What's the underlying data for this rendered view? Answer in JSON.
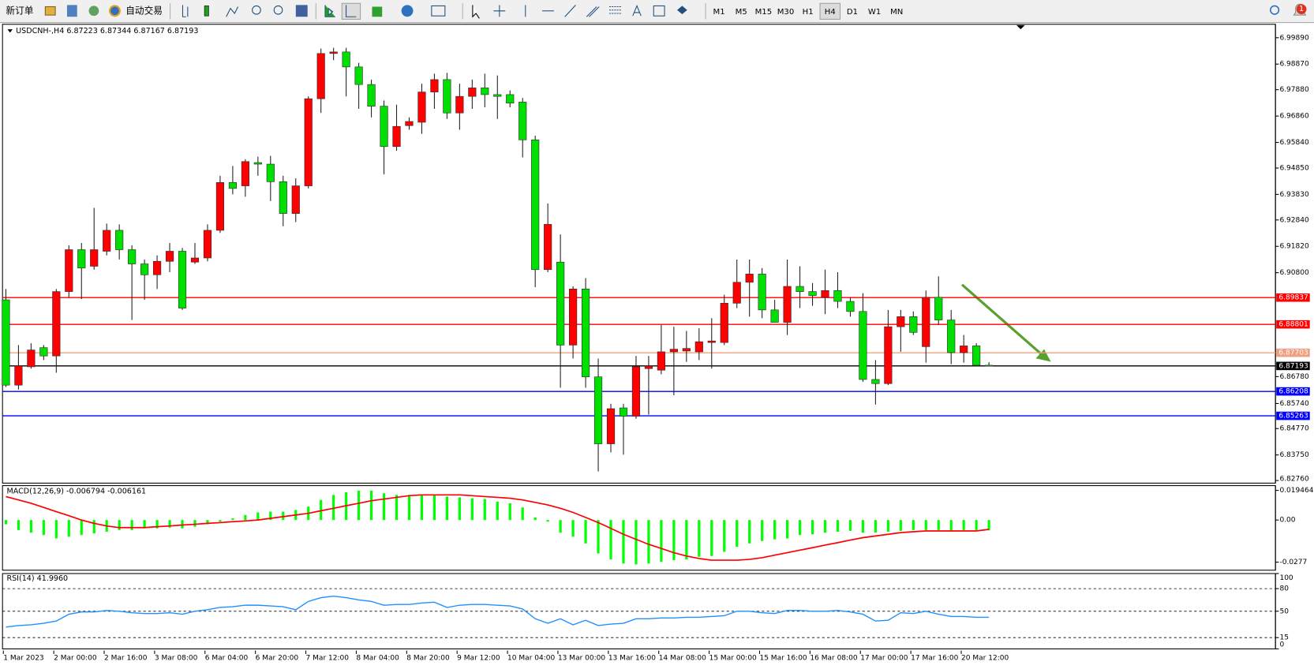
{
  "toolbar": {
    "new_order": "新订单",
    "auto_trading": "自动交易",
    "timeframes": [
      "M1",
      "M5",
      "M15",
      "M30",
      "H1",
      "H4",
      "D1",
      "W1",
      "MN"
    ],
    "active_timeframe": 5,
    "notifications": 1
  },
  "chart_data": [
    {
      "type": "candlestick",
      "title": "USDCNH-,H4  6.87223 6.87344 6.87167 6.87193",
      "categories": [
        "1 Mar 2023",
        null,
        null,
        null,
        "2 Mar 00:00",
        null,
        null,
        null,
        "2 Mar 16:00",
        null,
        null,
        null,
        "3 Mar 08:00",
        null,
        null,
        null,
        "6 Mar 04:00",
        null,
        null,
        null,
        "6 Mar 20:00",
        null,
        null,
        null,
        "7 Mar 12:00",
        null,
        null,
        null,
        "8 Mar 04:00",
        null,
        null,
        null,
        "8 Mar 20:00",
        null,
        null,
        null,
        "9 Mar 12:00",
        null,
        null,
        null,
        "10 Mar 04:00",
        null,
        null,
        null,
        "13 Mar 00:00",
        null,
        null,
        null,
        "13 Mar 16:00",
        null,
        null,
        null,
        "14 Mar 08:00",
        null,
        null,
        null,
        "15 Mar 00:00",
        null,
        null,
        null,
        "15 Mar 16:00",
        null,
        null,
        null,
        "16 Mar 08:00",
        null,
        null,
        null,
        "17 Mar 00:00",
        null,
        null,
        null,
        "17 Mar 16:00",
        null,
        null,
        null,
        "20 Mar 12:00",
        null,
        null
      ],
      "open": [
        6.8975,
        6.8645,
        6.8716,
        6.879,
        6.8758,
        6.9007,
        6.9169,
        6.9105,
        6.9163,
        6.9244,
        6.9169,
        6.9114,
        6.9072,
        6.9124,
        6.9163,
        6.9121,
        6.9137,
        6.9244,
        6.9429,
        6.9416,
        6.9506,
        6.95,
        6.9432,
        6.9309,
        6.9416,
        6.9753,
        6.9928,
        6.9934,
        6.9876,
        6.9808,
        6.9724,
        6.9568,
        6.9649,
        6.9662,
        6.9779,
        6.9827,
        6.9698,
        6.9762,
        6.9795,
        6.9769,
        6.9769,
        6.974,
        6.9594,
        6.9092,
        6.9121,
        6.88,
        6.9017,
        6.8677,
        6.8418,
        6.8557,
        6.8525,
        6.8709,
        6.8703,
        6.8774,
        6.8777,
        6.8774,
        6.881,
        6.881,
        6.8962,
        6.9043,
        6.9075,
        6.8936,
        6.8888,
        6.9027,
        6.9007,
        6.8985,
        6.9011,
        6.8969,
        6.893,
        6.8667,
        6.8651,
        6.8871,
        6.891,
        6.8794,
        6.8985,
        6.8897,
        6.8771,
        6.8797,
        6.8722
      ],
      "high": [
        6.9017,
        6.88,
        6.8807,
        6.88,
        6.9017,
        6.9186,
        6.9195,
        6.9331,
        6.927,
        6.9267,
        6.9186,
        6.9131,
        6.9147,
        6.9195,
        6.9176,
        6.9195,
        6.9267,
        6.9455,
        6.9493,
        6.9519,
        6.9529,
        6.9532,
        6.9455,
        6.9445,
        6.9762,
        6.9947,
        6.995,
        6.995,
        6.9892,
        6.9827,
        6.9746,
        6.973,
        6.9681,
        6.9811,
        6.985,
        6.9853,
        6.9811,
        6.9827,
        6.985,
        6.9843,
        6.9785,
        6.9756,
        6.961,
        6.9348,
        6.9228,
        6.9027,
        6.9059,
        6.8748,
        6.8573,
        6.8573,
        6.8758,
        6.8758,
        6.8878,
        6.8871,
        6.8855,
        6.8865,
        6.8904,
        6.8995,
        6.9131,
        6.9131,
        6.9098,
        6.8975,
        6.9131,
        6.9105,
        6.904,
        6.9092,
        6.9082,
        6.8985,
        6.9001,
        6.8742,
        6.8936,
        6.8936,
        6.893,
        6.9011,
        6.9066,
        6.8936,
        6.8839,
        6.8807,
        6.8734
      ],
      "low": [
        6.8638,
        6.8628,
        6.8709,
        6.8742,
        6.8693,
        6.8985,
        6.8978,
        6.9092,
        6.9147,
        6.9131,
        6.8897,
        6.8975,
        6.9017,
        6.9082,
        6.8936,
        6.9114,
        6.9124,
        6.9234,
        6.9383,
        6.9374,
        6.9455,
        6.9357,
        6.926,
        6.9276,
        6.9406,
        6.9698,
        6.9902,
        6.9762,
        6.9714,
        6.9681,
        6.9461,
        6.9552,
        6.9633,
        6.9617,
        6.9714,
        6.9675,
        6.9633,
        6.9714,
        6.972,
        6.9675,
        6.972,
        6.9526,
        6.9024,
        6.9082,
        6.8635,
        6.8748,
        6.8635,
        6.8311,
        6.8385,
        6.8376,
        6.8515,
        6.8531,
        6.8687,
        6.8606,
        6.8735,
        6.8742,
        6.8709,
        6.88,
        6.8943,
        6.891,
        6.8904,
        6.8888,
        6.8839,
        6.8943,
        6.8952,
        6.892,
        6.8943,
        6.891,
        6.8658,
        6.857,
        6.8645,
        6.8774,
        6.8839,
        6.8732,
        6.8878,
        6.8726,
        6.8732,
        6.8719,
        6.8717
      ],
      "close": [
        6.8645,
        6.8719,
        6.8781,
        6.8758,
        6.9007,
        6.9169,
        6.9098,
        6.9169,
        6.9244,
        6.9169,
        6.9114,
        6.9072,
        6.9124,
        6.9163,
        6.8943,
        6.9137,
        6.9244,
        6.9429,
        6.9406,
        6.951,
        6.95,
        6.9432,
        6.9309,
        6.9416,
        6.9753,
        6.9928,
        6.9934,
        6.9876,
        6.9808,
        6.9724,
        6.9568,
        6.9646,
        6.9665,
        6.9779,
        6.9827,
        6.9698,
        6.9762,
        6.9795,
        6.9769,
        6.9762,
        6.9736,
        6.9594,
        6.9092,
        6.9267,
        6.88,
        6.9017,
        6.8677,
        6.8418,
        6.8554,
        6.8525,
        6.8716,
        6.8719,
        6.8774,
        6.8784,
        6.8787,
        6.8813,
        6.8816,
        6.8962,
        6.9043,
        6.9075,
        6.8936,
        6.8888,
        6.9027,
        6.9007,
        6.8991,
        6.9011,
        6.8969,
        6.893,
        6.8667,
        6.8651,
        6.8871,
        6.891,
        6.8849,
        6.8985,
        6.8897,
        6.8771,
        6.8797,
        6.8722,
        6.8719
      ],
      "up_color": "#ff0000",
      "down_color": "#00e000",
      "ylim": [
        6.8266,
        7.0041
      ],
      "yticks": [
        {
          "value": 6.9989,
          "label": "6.99890"
        },
        {
          "value": 6.9887,
          "label": "6.98870"
        },
        {
          "value": 6.9788,
          "label": "6.97880"
        },
        {
          "value": 6.9686,
          "label": "6.96860"
        },
        {
          "value": 6.9584,
          "label": "6.95840"
        },
        {
          "value": 6.9485,
          "label": "6.94850"
        },
        {
          "value": 6.9383,
          "label": "6.93830"
        },
        {
          "value": 6.9284,
          "label": "6.92840"
        },
        {
          "value": 6.9182,
          "label": "6.91820"
        },
        {
          "value": 6.908,
          "label": "6.90800"
        },
        {
          "value": 6.8678,
          "label": "6.86780"
        },
        {
          "value": 6.8574,
          "label": "6.85740"
        },
        {
          "value": 6.8477,
          "label": "6.84770"
        },
        {
          "value": 6.8375,
          "label": "6.83750"
        },
        {
          "value": 6.8276,
          "label": "6.82760"
        }
      ],
      "levels": [
        {
          "value": 6.89837,
          "color": "#ff0000"
        },
        {
          "value": 6.88801,
          "color": "#ff0000"
        },
        {
          "value": 6.87703,
          "color": "#f0a080"
        },
        {
          "value": 6.87193,
          "color": "#000000"
        },
        {
          "value": 6.86208,
          "color": "#0000ff"
        },
        {
          "value": 6.85263,
          "color": "#0000ff"
        }
      ]
    },
    {
      "type": "macd",
      "title": "MACD(12,26,9) -0.006794 -0.006161",
      "histogram": {
        "color": "#00ff00",
        "values": [
          -0.0028,
          -0.0066,
          -0.0083,
          -0.0099,
          -0.0121,
          -0.011,
          -0.0099,
          -0.0088,
          -0.0077,
          -0.0066,
          -0.0066,
          -0.0055,
          -0.0055,
          -0.005,
          -0.0055,
          -0.0044,
          -0.0028,
          -0.0011,
          0.0011,
          0.0033,
          0.005,
          0.0055,
          0.0055,
          0.0066,
          0.0088,
          0.0132,
          0.0165,
          0.0182,
          0.0193,
          0.0193,
          0.0176,
          0.0165,
          0.0165,
          0.0165,
          0.0165,
          0.0154,
          0.0149,
          0.0143,
          0.0138,
          0.0121,
          0.011,
          0.0083,
          0.0017,
          -0.0011,
          -0.0083,
          -0.011,
          -0.0154,
          -0.022,
          -0.0259,
          -0.0286,
          -0.0292,
          -0.0286,
          -0.0275,
          -0.0264,
          -0.0259,
          -0.0242,
          -0.0237,
          -0.0209,
          -0.0176,
          -0.0154,
          -0.0138,
          -0.0127,
          -0.0121,
          -0.0099,
          -0.0094,
          -0.0083,
          -0.0077,
          -0.0072,
          -0.0083,
          -0.0083,
          -0.0077,
          -0.0072,
          -0.0066,
          -0.0066,
          -0.0066,
          -0.0072,
          -0.0066,
          -0.0066,
          -0.006794
        ]
      },
      "signal": {
        "color": "#ff0000",
        "values": [
          0.0154,
          0.0132,
          0.011,
          0.0083,
          0.0055,
          0.0028,
          0,
          -0.0022,
          -0.0039,
          -0.005,
          -0.005,
          -0.005,
          -0.0044,
          -0.0039,
          -0.0033,
          -0.0028,
          -0.0022,
          -0.0017,
          -0.0011,
          -0.0006,
          0,
          0.0011,
          0.0022,
          0.0033,
          0.0044,
          0.0061,
          0.0077,
          0.0094,
          0.011,
          0.0127,
          0.0138,
          0.0149,
          0.016,
          0.0165,
          0.0165,
          0.0165,
          0.0165,
          0.016,
          0.0154,
          0.0149,
          0.0143,
          0.0132,
          0.0116,
          0.0099,
          0.0077,
          0.005,
          0.0017,
          -0.0017,
          -0.0055,
          -0.0094,
          -0.0127,
          -0.016,
          -0.0187,
          -0.0215,
          -0.0237,
          -0.0253,
          -0.0264,
          -0.0264,
          -0.0264,
          -0.0259,
          -0.0248,
          -0.0231,
          -0.0215,
          -0.0198,
          -0.0182,
          -0.0165,
          -0.0149,
          -0.0132,
          -0.0116,
          -0.0105,
          -0.0094,
          -0.0083,
          -0.0077,
          -0.0072,
          -0.0072,
          -0.0072,
          -0.0072,
          -0.0072,
          -0.006161
        ]
      },
      "ylim": [
        -0.033,
        0.0226
      ],
      "yticks": [
        0.019464,
        {
          "value": 0,
          "label": "0.00"
        },
        -0.0277
      ]
    },
    {
      "type": "line",
      "title": "RSI(14) 41.9960",
      "color": "#1e90ff",
      "values": [
        29,
        31,
        32,
        34,
        37,
        46,
        49,
        49,
        51,
        50,
        48,
        47,
        47,
        48,
        46,
        50,
        52,
        55,
        56,
        58,
        58,
        57,
        56,
        52,
        63,
        68,
        70,
        68,
        65,
        63,
        58,
        59,
        59,
        61,
        62,
        55,
        58,
        59,
        59,
        58,
        57,
        53,
        40,
        34,
        40,
        32,
        38,
        31,
        33,
        34,
        40,
        40,
        41,
        41,
        42,
        42,
        43,
        44,
        50,
        50,
        48,
        47,
        51,
        51,
        50,
        50,
        51,
        49,
        46,
        37,
        38,
        48,
        47,
        50,
        46,
        43,
        43,
        42,
        41.996
      ],
      "ylim": [
        0,
        100
      ],
      "yticks": [
        100,
        80,
        50,
        15,
        0
      ],
      "levels": [
        80,
        50,
        15
      ]
    }
  ]
}
